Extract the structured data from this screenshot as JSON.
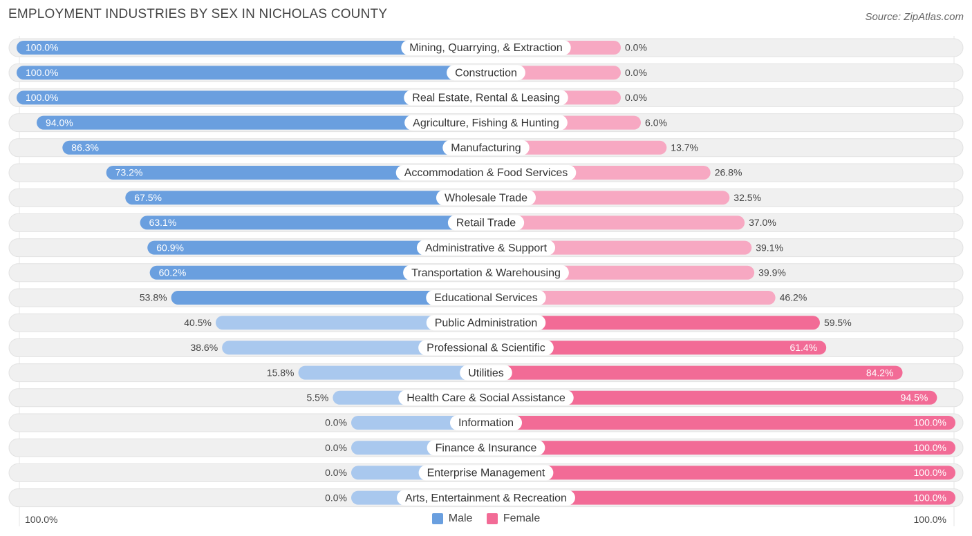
{
  "header": {
    "title": "EMPLOYMENT INDUSTRIES BY SEX IN NICHOLAS COUNTY",
    "source": "Source: ZipAtlas.com"
  },
  "colors": {
    "male": "#6a9fdf",
    "male_light": "#a9c8ee",
    "female": "#f26b96",
    "female_light": "#f7a8c2",
    "track": "#f0f0f0"
  },
  "legend": {
    "male": "Male",
    "female": "Female"
  },
  "axis": {
    "left": "100.0%",
    "right": "100.0%"
  },
  "chart_data": {
    "type": "bar",
    "orientation": "horizontal-diverging",
    "title": "EMPLOYMENT INDUSTRIES BY SEX IN NICHOLAS COUNTY",
    "categories": [
      "Mining, Quarrying, & Extraction",
      "Construction",
      "Real Estate, Rental & Leasing",
      "Agriculture, Fishing & Hunting",
      "Manufacturing",
      "Accommodation & Food Services",
      "Wholesale Trade",
      "Retail Trade",
      "Administrative & Support",
      "Transportation & Warehousing",
      "Educational Services",
      "Public Administration",
      "Professional & Scientific",
      "Utilities",
      "Health Care & Social Assistance",
      "Information",
      "Finance & Insurance",
      "Enterprise Management",
      "Arts, Entertainment & Recreation"
    ],
    "series": [
      {
        "name": "Male",
        "values": [
          100.0,
          100.0,
          100.0,
          94.0,
          86.3,
          73.2,
          67.5,
          63.1,
          60.9,
          60.2,
          53.8,
          40.5,
          38.6,
          15.8,
          5.5,
          0.0,
          0.0,
          0.0,
          0.0
        ],
        "labels": [
          "100.0%",
          "100.0%",
          "100.0%",
          "94.0%",
          "86.3%",
          "73.2%",
          "67.5%",
          "63.1%",
          "60.9%",
          "60.2%",
          "53.8%",
          "40.5%",
          "38.6%",
          "15.8%",
          "5.5%",
          "0.0%",
          "0.0%",
          "0.0%",
          "0.0%"
        ]
      },
      {
        "name": "Female",
        "values": [
          0.0,
          0.0,
          0.0,
          6.0,
          13.7,
          26.8,
          32.5,
          37.0,
          39.1,
          39.9,
          46.2,
          59.5,
          61.4,
          84.2,
          94.5,
          100.0,
          100.0,
          100.0,
          100.0
        ],
        "labels": [
          "0.0%",
          "0.0%",
          "0.0%",
          "6.0%",
          "13.7%",
          "26.8%",
          "32.5%",
          "37.0%",
          "39.1%",
          "39.9%",
          "46.2%",
          "59.5%",
          "61.4%",
          "84.2%",
          "94.5%",
          "100.0%",
          "100.0%",
          "100.0%",
          "100.0%"
        ]
      }
    ],
    "xlim": [
      -100,
      100
    ],
    "legend_position": "bottom-center"
  }
}
